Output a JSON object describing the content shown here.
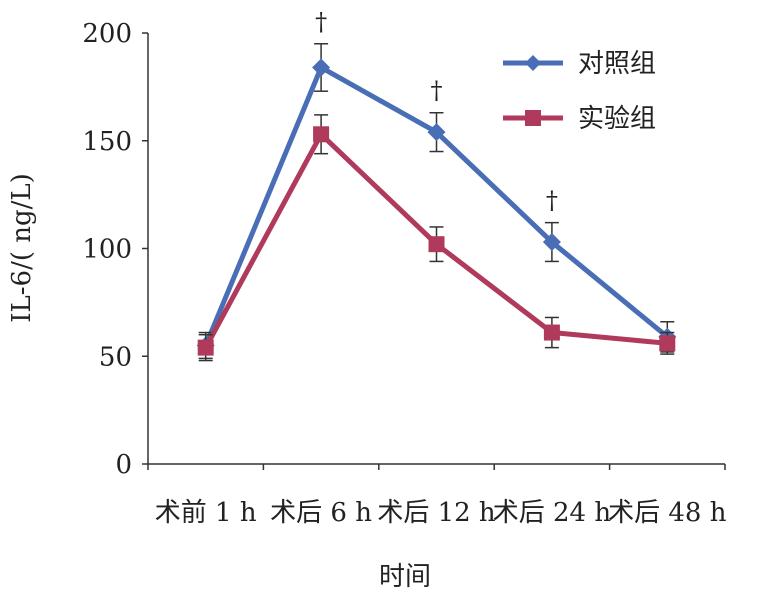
{
  "chart_data": {
    "type": "line",
    "categories": [
      "术前 1 h",
      "术后 6 h",
      "术后 12 h",
      "术后 24 h",
      "术后 48 h"
    ],
    "series": [
      {
        "name": "对照组",
        "color": "#4a6eb5",
        "marker": "diamond",
        "values": [
          55,
          184,
          154,
          103,
          59
        ],
        "error": [
          6,
          11,
          9,
          9,
          7
        ]
      },
      {
        "name": "实验组",
        "color": "#b03a5b",
        "marker": "square",
        "values": [
          54,
          153,
          102,
          61,
          56
        ],
        "error": [
          6,
          9,
          8,
          7,
          5
        ]
      }
    ],
    "significance": [
      "",
      "†",
      "†",
      "†",
      ""
    ],
    "xlabel": "时间",
    "ylabel": "IL-6/( ng/L)",
    "ylim": [
      0,
      200
    ],
    "yticks": [
      0,
      50,
      100,
      150,
      200
    ],
    "legend_position": "top-right",
    "grid": false
  }
}
